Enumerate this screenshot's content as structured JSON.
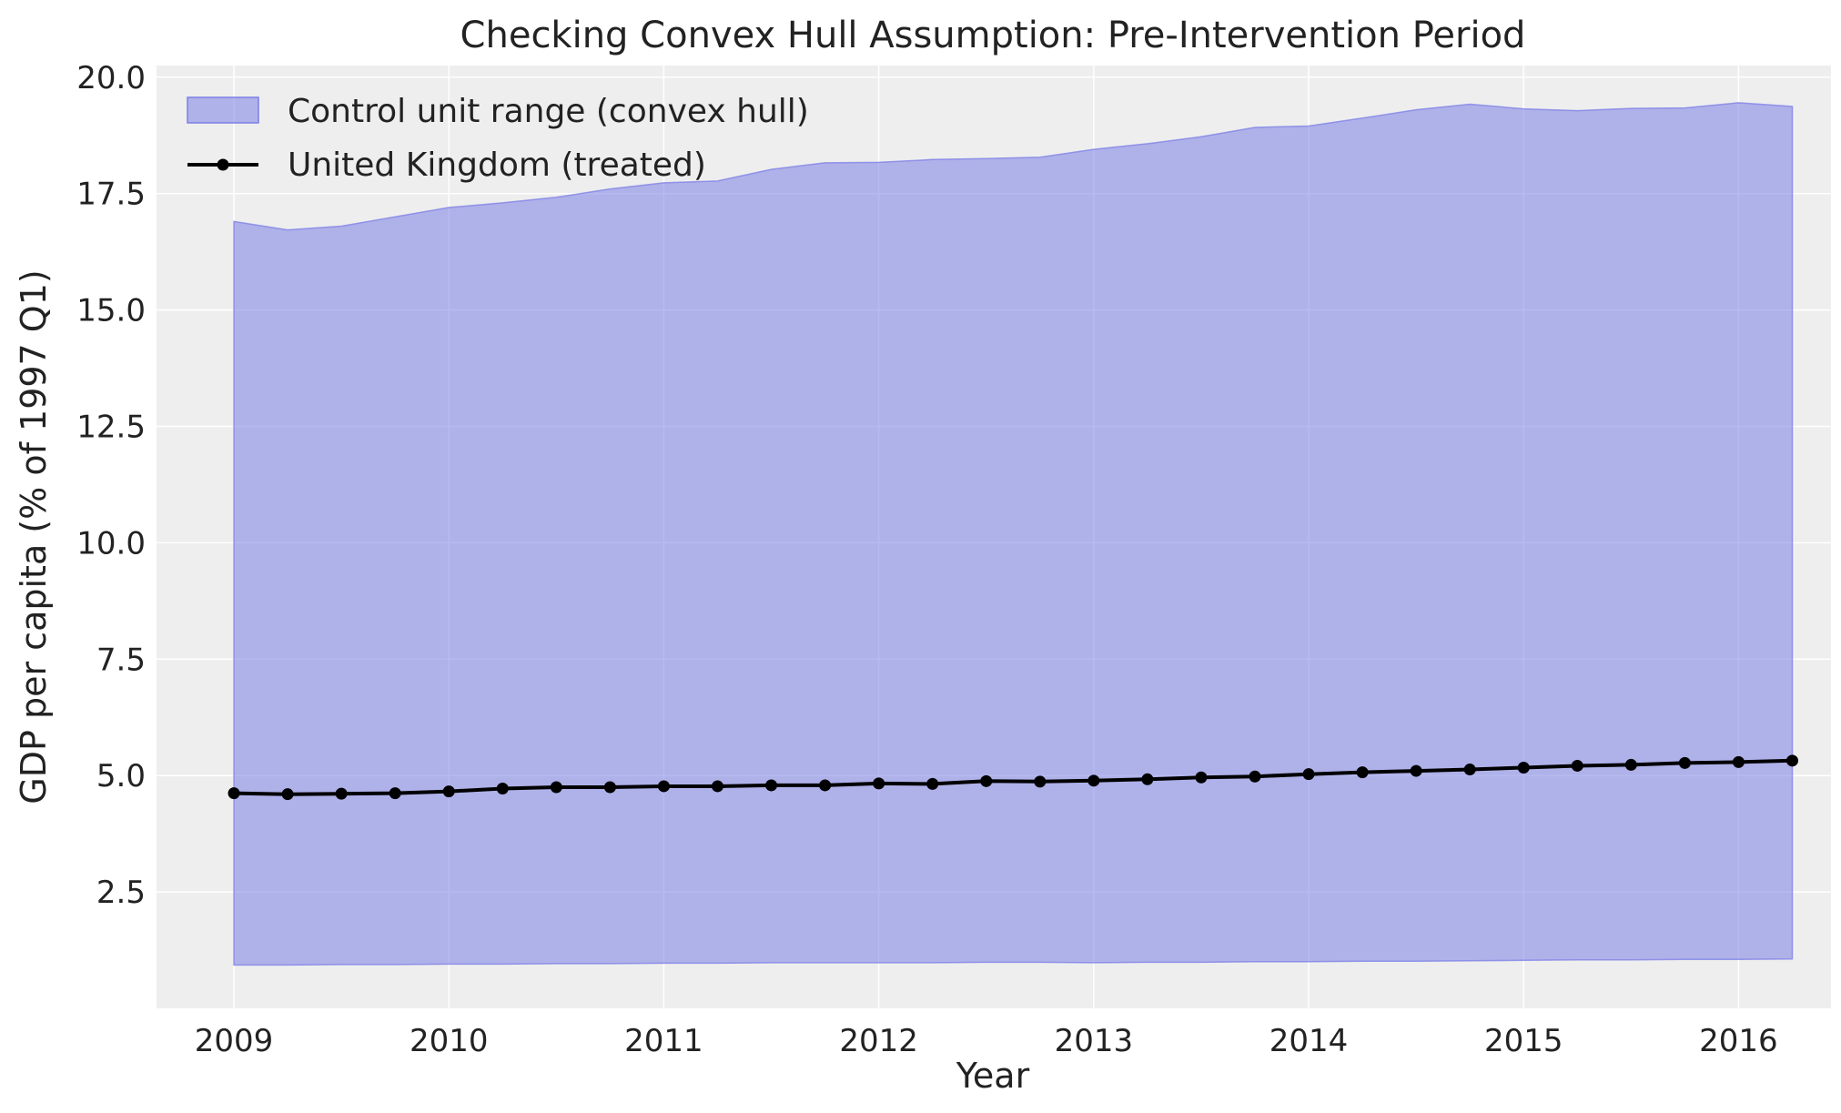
{
  "chart_data": {
    "type": "area",
    "title": "Checking Convex Hull Assumption: Pre-Intervention Period",
    "xlabel": "Year",
    "ylabel": "GDP per capita (% of 1997 Q1)",
    "xlim": [
      2008.64,
      2016.43
    ],
    "ylim": [
      0.0,
      20.25
    ],
    "x_ticks": [
      2009,
      2010,
      2011,
      2012,
      2013,
      2014,
      2015,
      2016
    ],
    "y_ticks": [
      2.5,
      5.0,
      7.5,
      10.0,
      12.5,
      15.0,
      17.5,
      20.0
    ],
    "x_tick_labels": [
      "2009",
      "2010",
      "2011",
      "2012",
      "2013",
      "2014",
      "2015",
      "2016"
    ],
    "y_tick_labels": [
      "2.5",
      "5.0",
      "7.5",
      "10.0",
      "12.5",
      "15.0",
      "17.5",
      "20.0"
    ],
    "grid": true,
    "legend_position": "upper-left",
    "x": [
      2009.0,
      2009.25,
      2009.5,
      2009.75,
      2010.0,
      2010.25,
      2010.5,
      2010.75,
      2011.0,
      2011.25,
      2011.5,
      2011.75,
      2012.0,
      2012.25,
      2012.5,
      2012.75,
      2013.0,
      2013.25,
      2013.5,
      2013.75,
      2014.0,
      2014.25,
      2014.5,
      2014.75,
      2015.0,
      2015.25,
      2015.5,
      2015.75,
      2016.0,
      2016.25
    ],
    "series": [
      {
        "name": "Control unit range (convex hull)",
        "kind": "band",
        "color": "#7b7fe6",
        "lower": [
          0.93,
          0.93,
          0.94,
          0.94,
          0.95,
          0.95,
          0.96,
          0.96,
          0.97,
          0.97,
          0.98,
          0.98,
          0.98,
          0.98,
          0.99,
          0.99,
          0.98,
          0.99,
          0.99,
          1.0,
          1.0,
          1.01,
          1.01,
          1.02,
          1.03,
          1.04,
          1.04,
          1.05,
          1.05,
          1.06
        ],
        "upper": [
          16.9,
          16.72,
          16.8,
          17.0,
          17.2,
          17.3,
          17.42,
          17.6,
          17.73,
          17.77,
          18.02,
          18.16,
          18.17,
          18.23,
          18.25,
          18.28,
          18.45,
          18.57,
          18.72,
          18.92,
          18.95,
          19.12,
          19.3,
          19.42,
          19.32,
          19.28,
          19.33,
          19.34,
          19.45,
          19.37
        ]
      },
      {
        "name": "United Kingdom (treated)",
        "kind": "line",
        "color": "#000000",
        "values": [
          4.62,
          4.6,
          4.61,
          4.62,
          4.66,
          4.72,
          4.75,
          4.75,
          4.77,
          4.77,
          4.79,
          4.79,
          4.83,
          4.82,
          4.88,
          4.87,
          4.89,
          4.92,
          4.96,
          4.98,
          5.03,
          5.07,
          5.1,
          5.13,
          5.17,
          5.21,
          5.23,
          5.27,
          5.29,
          5.32
        ]
      }
    ]
  }
}
